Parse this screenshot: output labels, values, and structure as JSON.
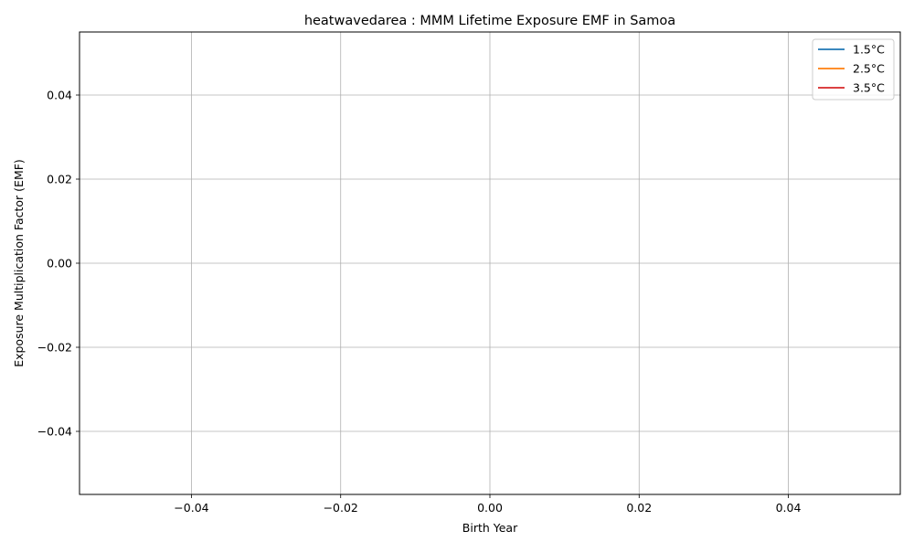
{
  "chart_data": {
    "type": "line",
    "title": "heatwavedarea : MMM Lifetime Exposure EMF in Samoa",
    "xlabel": "Birth Year",
    "ylabel": "Exposure Multiplication Factor (EMF)",
    "xlim": [
      -0.055,
      0.055
    ],
    "ylim": [
      -0.055,
      0.055
    ],
    "x_ticks": [
      -0.04,
      -0.02,
      0.0,
      0.02,
      0.04
    ],
    "x_tick_labels": [
      "−0.04",
      "−0.02",
      "0.00",
      "0.02",
      "0.04"
    ],
    "y_ticks": [
      -0.04,
      -0.02,
      0.0,
      0.02,
      0.04
    ],
    "y_tick_labels": [
      "−0.04",
      "−0.02",
      "0.00",
      "0.02",
      "0.04"
    ],
    "grid": true,
    "legend_position": "top-right",
    "series": [
      {
        "name": "1.5°C",
        "color": "#1f77b4",
        "x": [],
        "y": []
      },
      {
        "name": "2.5°C",
        "color": "#ff7f0e",
        "x": [],
        "y": []
      },
      {
        "name": "3.5°C",
        "color": "#d62728",
        "x": [],
        "y": []
      }
    ]
  }
}
